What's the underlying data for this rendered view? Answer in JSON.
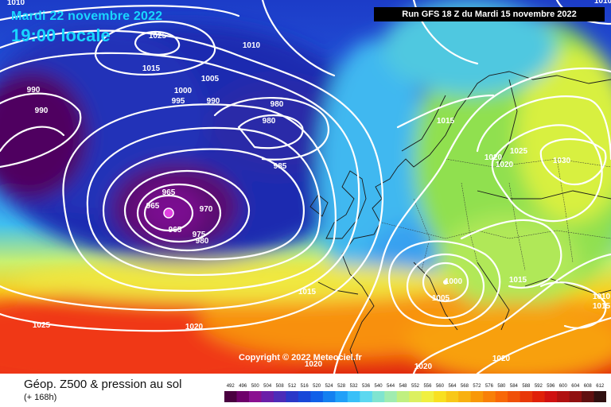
{
  "header": {
    "date": "Mardi 22 novembre 2022",
    "time": "19:00 locale",
    "run": "Run GFS 18 Z du Mardi 15 novembre 2022"
  },
  "footer": {
    "title": "Géop. Z500 & pression au sol",
    "subtitle": "(+ 168h)",
    "copyright": "Copyright © 2022 Meteociel.fr"
  },
  "legend": {
    "values": [
      "492",
      "496",
      "500",
      "504",
      "508",
      "512",
      "516",
      "520",
      "524",
      "528",
      "532",
      "536",
      "540",
      "544",
      "548",
      "552",
      "556",
      "560",
      "564",
      "568",
      "572",
      "576",
      "580",
      "584",
      "588",
      "592",
      "596",
      "600",
      "604",
      "608",
      "612"
    ],
    "colors": [
      "#4a0040",
      "#6e006a",
      "#8a1090",
      "#6a1ea8",
      "#4c2cb8",
      "#2a38c8",
      "#1848d8",
      "#1060e8",
      "#1480f0",
      "#20a0f8",
      "#38c0f8",
      "#5cd8f0",
      "#80e4d0",
      "#a0ecb0",
      "#c0f080",
      "#dcf060",
      "#f0f040",
      "#f8e020",
      "#f8c818",
      "#f8b010",
      "#f89808",
      "#f88008",
      "#f86808",
      "#f05008",
      "#e83808",
      "#e02008",
      "#d01010",
      "#b01010",
      "#901010",
      "#601010",
      "#301010"
    ]
  },
  "isobar_labels": [
    {
      "text": "1010"
    },
    {
      "text": "1025"
    },
    {
      "text": "1010"
    },
    {
      "text": "1015"
    },
    {
      "text": "1005"
    },
    {
      "text": "990"
    },
    {
      "text": "990"
    },
    {
      "text": "1000"
    },
    {
      "text": "995"
    },
    {
      "text": "990"
    },
    {
      "text": "980"
    },
    {
      "text": "980"
    },
    {
      "text": "985"
    },
    {
      "text": "965"
    },
    {
      "text": "965"
    },
    {
      "text": "970"
    },
    {
      "text": "965"
    },
    {
      "text": "975"
    },
    {
      "text": "980"
    },
    {
      "text": "1015"
    },
    {
      "text": "1020"
    },
    {
      "text": "1025"
    },
    {
      "text": "1030"
    },
    {
      "text": "1020"
    },
    {
      "text": "1015"
    },
    {
      "text": "1000"
    },
    {
      "text": "1005"
    },
    {
      "text": "1015"
    },
    {
      "text": "1025"
    },
    {
      "text": "1020"
    },
    {
      "text": "1020"
    },
    {
      "text": "1020"
    },
    {
      "text": "1020"
    },
    {
      "text": "1010"
    },
    {
      "text": "1010"
    },
    {
      "text": "1015"
    }
  ]
}
